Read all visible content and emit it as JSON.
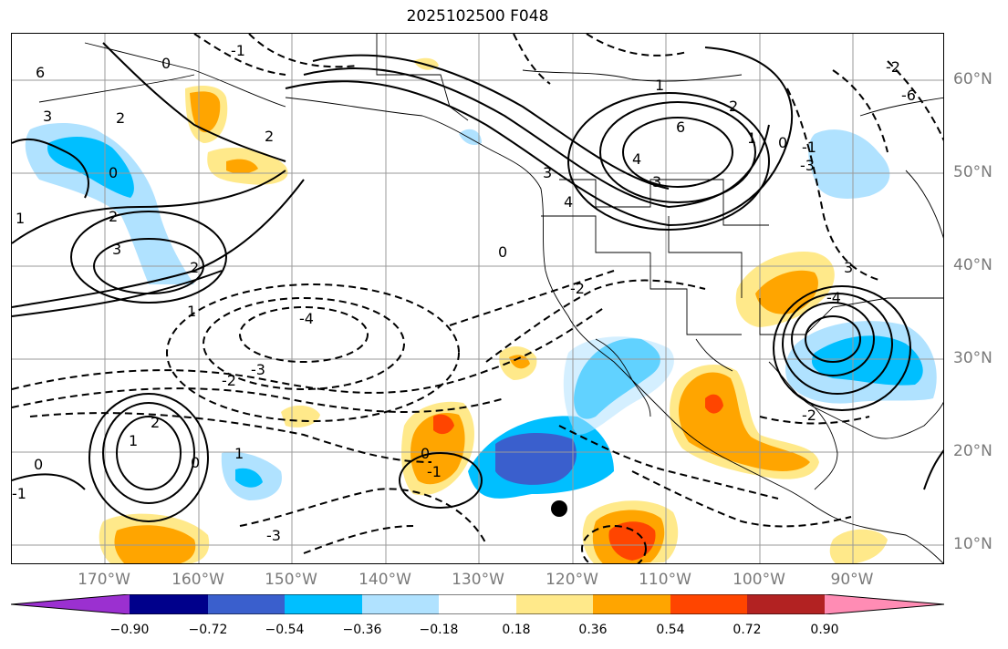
{
  "title": "2025102500 F048",
  "lon_labels": [
    "170°W",
    "160°W",
    "150°W",
    "140°W",
    "130°W",
    "120°W",
    "110°W",
    "100°W",
    "90°W"
  ],
  "lat_labels": [
    "60°N",
    "50°N",
    "40°N",
    "30°N",
    "20°N",
    "10°N"
  ],
  "colorbar": {
    "ticks": [
      "−0.90",
      "−0.72",
      "−0.54",
      "−0.36",
      "−0.18",
      "0.18",
      "0.36",
      "0.54",
      "0.72",
      "0.90"
    ],
    "colors": [
      "#9b30d0",
      "#00008b",
      "#3a5fcd",
      "#00bfff",
      "#b0e2ff",
      "#ffffff",
      "#ffe98a",
      "#ffa500",
      "#ff4500",
      "#b22222",
      "#ff8cb4"
    ]
  },
  "contour_labels": [
    "6",
    "3",
    "2",
    "0",
    "1",
    "0",
    "2",
    "3",
    "2",
    "-1",
    "4",
    "3",
    "2",
    "0",
    "1",
    "6",
    "4",
    "3",
    "2",
    "1",
    "0",
    "-1",
    "-2",
    "-3",
    "-4",
    "-2",
    "-3",
    "0",
    "-1",
    "1",
    "0",
    "-1",
    "-2",
    "1",
    "2",
    "0",
    "1",
    "-4",
    "-3",
    "-2",
    "3",
    "-6"
  ],
  "marker": "storm-position"
}
